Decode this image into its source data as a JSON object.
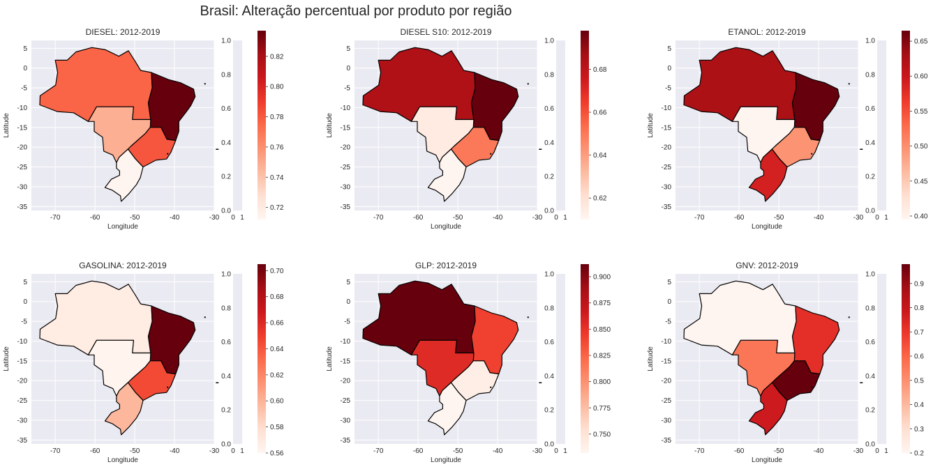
{
  "figure": {
    "title": "Brasil: Alteração percentual por produto por região"
  },
  "chart_data": {
    "type": "choropleth",
    "xlabel": "Longitude",
    "ylabel": "Latitude",
    "xlim": [
      -76,
      -30
    ],
    "ylim": [
      -36,
      7
    ],
    "xticks": [
      -70,
      -60,
      -50,
      -40,
      -30
    ],
    "yticks": [
      5,
      0,
      -5,
      -10,
      -15,
      -20,
      -25,
      -30,
      -35
    ],
    "grid": true,
    "colormap": "Reds",
    "aux_axis": {
      "yticks": [
        "0.0",
        "0.2",
        "0.4",
        "0.6",
        "0.8",
        "1.0"
      ],
      "xticks": [
        "0",
        "1"
      ]
    },
    "regions": [
      "Norte",
      "Nordeste",
      "Centro-Oeste",
      "Sudeste",
      "Sul"
    ],
    "panels": [
      {
        "title": "DIESEL: 2012-2019",
        "cmin": 0.712,
        "cmax": 0.837,
        "ticks": [
          "0.72",
          "0.74",
          "0.76",
          "0.78",
          "0.80",
          "0.82"
        ],
        "values": {
          "Norte": 0.776,
          "Nordeste": 0.837,
          "Centro-Oeste": 0.748,
          "Sudeste": 0.781,
          "Sul": 0.712
        }
      },
      {
        "title": "DIESEL S10: 2012-2019",
        "cmin": 0.61,
        "cmax": 0.698,
        "ticks": [
          "0.62",
          "0.64",
          "0.66",
          "0.68"
        ],
        "values": {
          "Norte": 0.684,
          "Nordeste": 0.698,
          "Centro-Oeste": 0.615,
          "Sudeste": 0.65,
          "Sul": 0.61
        }
      },
      {
        "title": "ETANOL: 2012-2019",
        "cmin": 0.395,
        "cmax": 0.665,
        "ticks": [
          "0.40",
          "0.45",
          "0.50",
          "0.55",
          "0.60",
          "0.65"
        ],
        "values": {
          "Norte": 0.625,
          "Nordeste": 0.665,
          "Centro-Oeste": 0.395,
          "Sudeste": 0.495,
          "Sul": 0.59
        }
      },
      {
        "title": "GASOLINA: 2012-2019",
        "cmin": 0.56,
        "cmax": 0.705,
        "ticks": [
          "0.56",
          "0.58",
          "0.60",
          "0.62",
          "0.64",
          "0.66",
          "0.68",
          "0.70"
        ],
        "values": {
          "Norte": 0.568,
          "Nordeste": 0.705,
          "Centro-Oeste": 0.561,
          "Sudeste": 0.645,
          "Sul": 0.598
        }
      },
      {
        "title": "GLP: 2012-2019",
        "cmin": 0.732,
        "cmax": 0.912,
        "ticks": [
          "0.750",
          "0.775",
          "0.800",
          "0.825",
          "0.850",
          "0.875",
          "0.900"
        ],
        "values": {
          "Norte": 0.912,
          "Nordeste": 0.842,
          "Centro-Oeste": 0.855,
          "Sudeste": 0.74,
          "Sul": 0.732
        }
      },
      {
        "title": "GNV: 2012-2019",
        "cmin": 0.2,
        "cmax": 0.98,
        "ticks": [
          "0.2",
          "0.3",
          "0.4",
          "0.5",
          "0.6",
          "0.7",
          "0.8",
          "0.9"
        ],
        "values": {
          "Norte": 0.2,
          "Nordeste": 0.72,
          "Centro-Oeste": 0.56,
          "Sudeste": 0.98,
          "Sul": 0.78
        }
      }
    ]
  }
}
